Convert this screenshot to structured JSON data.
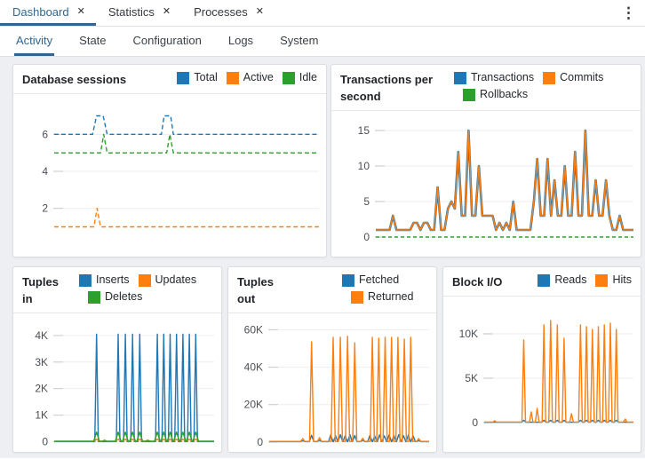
{
  "icons": {
    "close": "✕",
    "kebab": "⋮"
  },
  "colors": {
    "blue": "#1f77b4",
    "orange": "#ff7f0e",
    "green": "#2ca02c",
    "accent": "#326690"
  },
  "main_tabs": [
    {
      "label": "Dashboard",
      "active": true
    },
    {
      "label": "Statistics",
      "active": false
    },
    {
      "label": "Processes",
      "active": false
    }
  ],
  "sub_tabs": [
    {
      "label": "Activity",
      "active": true
    },
    {
      "label": "State",
      "active": false
    },
    {
      "label": "Configuration",
      "active": false
    },
    {
      "label": "Logs",
      "active": false
    },
    {
      "label": "System",
      "active": false
    }
  ],
  "panels": {
    "sessions": {
      "title": "Database sessions",
      "legend": [
        {
          "label": "Total",
          "color": "#1f77b4"
        },
        {
          "label": "Active",
          "color": "#ff7f0e"
        },
        {
          "label": "Idle",
          "color": "#2ca02c"
        }
      ],
      "chart": {
        "type": "line",
        "ylim": [
          0.4,
          7.6
        ],
        "pad": {
          "l": 46,
          "r": 8,
          "t": 12,
          "b": 20
        },
        "yticks": [
          {
            "v": 2,
            "label": "2"
          },
          {
            "v": 4,
            "label": "4"
          },
          {
            "v": 6,
            "label": "6"
          }
        ],
        "series": [
          {
            "name": "Total",
            "color": "#1f77b4",
            "width": 1.4,
            "dash": "5,3",
            "x": [
              0,
              0.145,
              0.16,
              0.185,
              0.2,
              0.405,
              0.415,
              0.44,
              0.45,
              1
            ],
            "y": [
              6,
              6,
              7,
              7,
              6,
              6,
              7,
              7,
              6,
              6
            ]
          },
          {
            "name": "Idle",
            "color": "#2ca02c",
            "width": 1.4,
            "dash": "5,3",
            "x": [
              0,
              0.175,
              0.187,
              0.2,
              0.425,
              0.437,
              0.45,
              1
            ],
            "y": [
              5,
              5,
              6,
              5,
              5,
              6,
              5,
              5
            ]
          },
          {
            "name": "Active",
            "color": "#ff7f0e",
            "width": 1.4,
            "dash": "5,3",
            "x": [
              0,
              0.15,
              0.162,
              0.175,
              1
            ],
            "y": [
              1,
              1,
              2,
              1,
              1
            ]
          }
        ]
      }
    },
    "tps": {
      "title": "Transactions per second",
      "legend": [
        {
          "label": "Transactions",
          "color": "#1f77b4"
        },
        {
          "label": "Commits",
          "color": "#ff7f0e"
        },
        {
          "label": "Rollbacks",
          "color": "#2ca02c"
        }
      ],
      "chart": {
        "type": "line",
        "ylim": [
          -0.5,
          16.5
        ],
        "pad": {
          "l": 50,
          "r": 8,
          "t": 10,
          "b": 18
        },
        "yticks": [
          {
            "v": 0,
            "label": "0"
          },
          {
            "v": 5,
            "label": "5"
          },
          {
            "v": 10,
            "label": "10"
          },
          {
            "v": 15,
            "label": "15"
          }
        ],
        "series": [
          {
            "name": "Transactions",
            "color": "#1f77b4",
            "width": 2.6,
            "y": [
              1,
              1,
              1,
              1,
              1,
              3,
              1,
              1,
              1,
              1,
              1,
              2,
              2,
              1,
              2,
              2,
              1,
              1,
              7,
              1,
              1,
              4,
              5,
              4,
              12,
              3,
              3,
              15,
              3,
              3,
              10,
              3,
              3,
              3,
              3,
              1,
              2,
              1,
              2,
              1,
              5,
              1,
              1,
              1,
              1,
              1,
              5,
              11,
              3,
              3,
              11,
              3,
              8,
              3,
              3,
              10,
              3,
              3,
              12,
              3,
              3,
              15,
              3,
              3,
              8,
              3,
              3,
              8,
              3,
              1,
              1,
              3,
              1,
              1,
              1,
              1
            ]
          },
          {
            "name": "Commits",
            "color": "#ff7f0e",
            "width": 1.5,
            "y": [
              1,
              1,
              1,
              1,
              1,
              3,
              1,
              1,
              1,
              1,
              1,
              2,
              2,
              1,
              2,
              2,
              1,
              1,
              7,
              1,
              1,
              4,
              5,
              4,
              12,
              3,
              3,
              15,
              3,
              3,
              10,
              3,
              3,
              3,
              3,
              1,
              2,
              1,
              2,
              1,
              5,
              1,
              1,
              1,
              1,
              1,
              5,
              11,
              3,
              3,
              11,
              3,
              8,
              3,
              3,
              10,
              3,
              3,
              12,
              3,
              3,
              15,
              3,
              3,
              8,
              3,
              3,
              8,
              3,
              1,
              1,
              3,
              1,
              1,
              1,
              1
            ]
          },
          {
            "name": "Rollbacks",
            "color": "#2ca02c",
            "width": 1.4,
            "dash": "4,3",
            "y": [
              0,
              0
            ]
          }
        ]
      }
    },
    "tuples_in": {
      "title": "Tuples in",
      "legend": [
        {
          "label": "Inserts",
          "color": "#1f77b4"
        },
        {
          "label": "Updates",
          "color": "#ff7f0e"
        },
        {
          "label": "Deletes",
          "color": "#2ca02c"
        }
      ],
      "chart": {
        "type": "line",
        "ylim": [
          -120,
          4500
        ],
        "pad": {
          "l": 46,
          "r": 8,
          "t": 10,
          "b": 8
        },
        "yticks": [
          {
            "v": 0,
            "label": "0"
          },
          {
            "v": 1000,
            "label": "1K"
          },
          {
            "v": 2000,
            "label": "2K"
          },
          {
            "v": 3000,
            "label": "3K"
          },
          {
            "v": 4000,
            "label": "4K"
          }
        ],
        "series": [
          {
            "name": "Inserts",
            "color": "#1f77b4",
            "width": 1.4,
            "spikes": {
              "base": 0,
              "hw": 0.011,
              "pos": [
                0.265,
                0.4,
                0.445,
                0.49,
                0.535,
                0.645,
                0.685,
                0.725,
                0.765,
                0.805,
                0.845,
                0.885
              ],
              "h": [
                4050,
                4050,
                4050,
                4050,
                4050,
                4050,
                4050,
                4050,
                4050,
                4050,
                4050,
                4050
              ]
            }
          },
          {
            "name": "Updates",
            "color": "#ff7f0e",
            "width": 1.4,
            "spikes": {
              "base": 8,
              "hw": 0.018,
              "pos": [
                0.265,
                0.315,
                0.4,
                0.445,
                0.49,
                0.535,
                0.585,
                0.645,
                0.685,
                0.725,
                0.765,
                0.805,
                0.845,
                0.885
              ],
              "h": [
                90,
                60,
                90,
                90,
                90,
                90,
                60,
                90,
                90,
                90,
                90,
                90,
                90,
                90
              ]
            }
          },
          {
            "name": "Deletes",
            "color": "#2ca02c",
            "width": 1.4,
            "spikes": {
              "base": 15,
              "hw": 0.018,
              "pos": [
                0.265,
                0.4,
                0.445,
                0.49,
                0.535,
                0.645,
                0.685,
                0.725,
                0.765,
                0.805,
                0.845,
                0.885
              ],
              "h": [
                360,
                360,
                360,
                360,
                360,
                360,
                360,
                360,
                360,
                360,
                360,
                360
              ]
            }
          }
        ]
      }
    },
    "tuples_out": {
      "title": "Tuples out",
      "legend": [
        {
          "label": "Fetched",
          "color": "#1f77b4"
        },
        {
          "label": "Returned",
          "color": "#ff7f0e"
        }
      ],
      "chart": {
        "type": "line",
        "ylim": [
          -1500,
          64000
        ],
        "pad": {
          "l": 46,
          "r": 8,
          "t": 10,
          "b": 8
        },
        "yticks": [
          {
            "v": 0,
            "label": "0"
          },
          {
            "v": 20000,
            "label": "20K"
          },
          {
            "v": 40000,
            "label": "40K"
          },
          {
            "v": 60000,
            "label": "60K"
          }
        ],
        "series": [
          {
            "name": "Fetched",
            "color": "#1f77b4",
            "width": 1.4,
            "spikes": {
              "base": 200,
              "hw": 0.014,
              "pos": [
                0.21,
                0.265,
                0.315,
                0.385,
                0.415,
                0.445,
                0.475,
                0.505,
                0.535,
                0.585,
                0.63,
                0.66,
                0.69,
                0.72,
                0.75,
                0.78,
                0.81,
                0.84,
                0.87,
                0.9,
                0.935
              ],
              "h": [
                700,
                3600,
                900,
                3800,
                3400,
                3900,
                3400,
                3900,
                3500,
                900,
                3600,
                3200,
                3800,
                3300,
                3800,
                3400,
                3900,
                3400,
                3800,
                3300,
                800
              ]
            }
          },
          {
            "name": "Returned",
            "color": "#ff7f0e",
            "width": 1.4,
            "spikes": {
              "base": 300,
              "hw": 0.013,
              "pos": [
                0.21,
                0.265,
                0.315,
                0.4,
                0.445,
                0.49,
                0.535,
                0.585,
                0.645,
                0.685,
                0.725,
                0.765,
                0.805,
                0.845,
                0.885,
                0.935
              ],
              "h": [
                1800,
                53500,
                2300,
                56000,
                56000,
                56500,
                53000,
                2000,
                56000,
                55500,
                56000,
                56000,
                56000,
                55000,
                56000,
                1800
              ]
            }
          }
        ]
      }
    },
    "block_io": {
      "title": "Block I/O",
      "legend": [
        {
          "label": "Reads",
          "color": "#1f77b4"
        },
        {
          "label": "Hits",
          "color": "#ff7f0e"
        }
      ],
      "chart": {
        "type": "line",
        "ylim": [
          -400,
          13000
        ],
        "pad": {
          "l": 46,
          "r": 8,
          "t": 12,
          "b": 14
        },
        "yticks": [
          {
            "v": 0,
            "label": "0"
          },
          {
            "v": 5000,
            "label": "5K"
          },
          {
            "v": 10000,
            "label": "10K"
          }
        ],
        "series": [
          {
            "name": "Reads",
            "color": "#1f77b4",
            "width": 1.4,
            "spikes": {
              "base": 40,
              "hw": 0.015,
              "pos": [
                0.265,
                0.4,
                0.445,
                0.49,
                0.535,
                0.645,
                0.685,
                0.725,
                0.765,
                0.805,
                0.845,
                0.885
              ],
              "h": [
                260,
                260,
                260,
                260,
                260,
                260,
                260,
                260,
                260,
                260,
                260,
                260
              ]
            }
          },
          {
            "name": "Hits",
            "color": "#ff7f0e",
            "width": 1.4,
            "spikes": {
              "base": 60,
              "hw": 0.012,
              "pos": [
                0.07,
                0.265,
                0.315,
                0.355,
                0.4,
                0.445,
                0.49,
                0.535,
                0.585,
                0.645,
                0.685,
                0.725,
                0.765,
                0.805,
                0.845,
                0.885,
                0.945
              ],
              "h": [
                200,
                9300,
                1200,
                1600,
                11000,
                11500,
                11000,
                9500,
                1000,
                11000,
                10800,
                10500,
                10800,
                11000,
                11200,
                10500,
                400
              ]
            }
          }
        ]
      }
    }
  }
}
